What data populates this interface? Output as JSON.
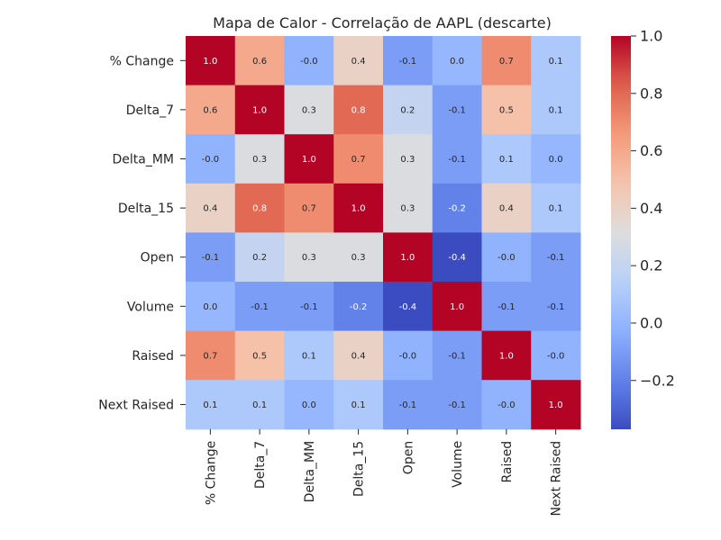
{
  "chart_data": {
    "type": "heatmap",
    "title": "Mapa de Calor - Correlação de AAPL (descarte)",
    "xlabel": "",
    "ylabel": "",
    "row_labels": [
      "% Change",
      "Delta_7",
      "Delta_MM",
      "Delta_15",
      "Open",
      "Volume",
      "Raised",
      "Next Raised"
    ],
    "col_labels": [
      "% Change",
      "Delta_7",
      "Delta_MM",
      "Delta_15",
      "Open",
      "Volume",
      "Raised",
      "Next Raised"
    ],
    "values": [
      [
        1.0,
        0.6,
        -0.01,
        0.4,
        -0.1,
        0.01,
        0.7,
        0.1
      ],
      [
        0.6,
        1.0,
        0.3,
        0.8,
        0.2,
        -0.1,
        0.5,
        0.1
      ],
      [
        -0.01,
        0.3,
        1.0,
        0.7,
        0.3,
        -0.1,
        0.1,
        0.01
      ],
      [
        0.4,
        0.8,
        0.7,
        1.0,
        0.3,
        -0.2,
        0.4,
        0.1
      ],
      [
        -0.1,
        0.2,
        0.3,
        0.3,
        1.0,
        -0.4,
        -0.01,
        -0.1
      ],
      [
        0.01,
        -0.1,
        -0.1,
        -0.2,
        -0.4,
        1.0,
        -0.1,
        -0.1
      ],
      [
        0.7,
        0.5,
        0.1,
        0.4,
        -0.01,
        -0.1,
        1.0,
        -0.01
      ],
      [
        0.1,
        0.1,
        0.01,
        0.1,
        -0.1,
        -0.1,
        -0.01,
        1.0
      ]
    ],
    "cell_text": [
      [
        "1.0",
        "0.6",
        "-0.0",
        "0.4",
        "-0.1",
        "0.0",
        "0.7",
        "0.1"
      ],
      [
        "0.6",
        "1.0",
        "0.3",
        "0.8",
        "0.2",
        "-0.1",
        "0.5",
        "0.1"
      ],
      [
        "-0.0",
        "0.3",
        "1.0",
        "0.7",
        "0.3",
        "-0.1",
        "0.1",
        "0.0"
      ],
      [
        "0.4",
        "0.8",
        "0.7",
        "1.0",
        "0.3",
        "-0.2",
        "0.4",
        "0.1"
      ],
      [
        "-0.1",
        "0.2",
        "0.3",
        "0.3",
        "1.0",
        "-0.4",
        "-0.0",
        "-0.1"
      ],
      [
        "0.0",
        "-0.1",
        "-0.1",
        "-0.2",
        "-0.4",
        "1.0",
        "-0.1",
        "-0.1"
      ],
      [
        "0.7",
        "0.5",
        "0.1",
        "0.4",
        "-0.0",
        "-0.1",
        "1.0",
        "-0.0"
      ],
      [
        "0.1",
        "0.1",
        "0.0",
        "0.1",
        "-0.1",
        "-0.1",
        "-0.0",
        "1.0"
      ]
    ],
    "colormap": "coolwarm",
    "vmin": -0.37,
    "vmax": 1.0,
    "colorbar_ticks": [
      -0.2,
      0.0,
      0.2,
      0.4,
      0.6,
      0.8,
      1.0
    ],
    "colorbar_tick_labels": [
      "−0.2",
      "0.0",
      "0.2",
      "0.4",
      "0.6",
      "0.8",
      "1.0"
    ],
    "grid": false,
    "legend": "colorbar-right"
  }
}
